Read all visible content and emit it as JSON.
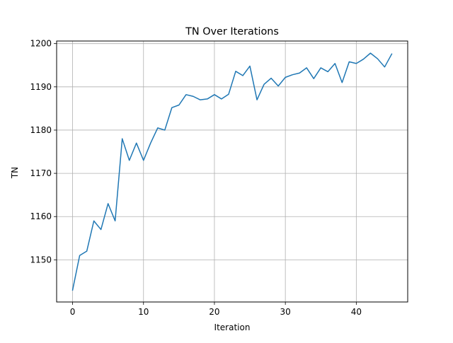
{
  "chart_data": {
    "type": "line",
    "title": "TN Over Iterations",
    "xlabel": "Iteration",
    "ylabel": "TN",
    "xlim": [
      -2.25,
      47.25
    ],
    "ylim": [
      1140.25,
      1200.6
    ],
    "grid": true,
    "xticks": [
      0,
      10,
      20,
      30,
      40
    ],
    "yticks": [
      1150,
      1160,
      1170,
      1180,
      1190,
      1200
    ],
    "series": [
      {
        "color": "#1f77b4",
        "x": [
          0,
          1,
          2,
          3,
          4,
          5,
          6,
          7,
          8,
          9,
          10,
          11,
          12,
          13,
          14,
          15,
          16,
          17,
          18,
          19,
          20,
          21,
          22,
          23,
          24,
          25,
          26,
          27,
          28,
          29,
          30,
          31,
          32,
          33,
          34,
          35,
          36,
          37,
          38,
          39,
          40,
          41,
          42,
          43,
          44,
          45
        ],
        "values": [
          1143,
          1151,
          1152,
          1159,
          1157,
          1163,
          1159,
          1178,
          1173,
          1177,
          1173,
          1177,
          1180.5,
          1180,
          1185.2,
          1185.8,
          1188.2,
          1187.8,
          1187,
          1187.2,
          1188.2,
          1187.2,
          1188.3,
          1193.6,
          1192.6,
          1194.8,
          1187,
          1190.6,
          1192,
          1190.2,
          1192.2,
          1192.8,
          1193.2,
          1194.4,
          1191.9,
          1194.4,
          1193.5,
          1195.4,
          1191,
          1195.8,
          1195.4,
          1196.4,
          1197.8,
          1196.5,
          1194.6,
          1197.6
        ]
      }
    ]
  }
}
